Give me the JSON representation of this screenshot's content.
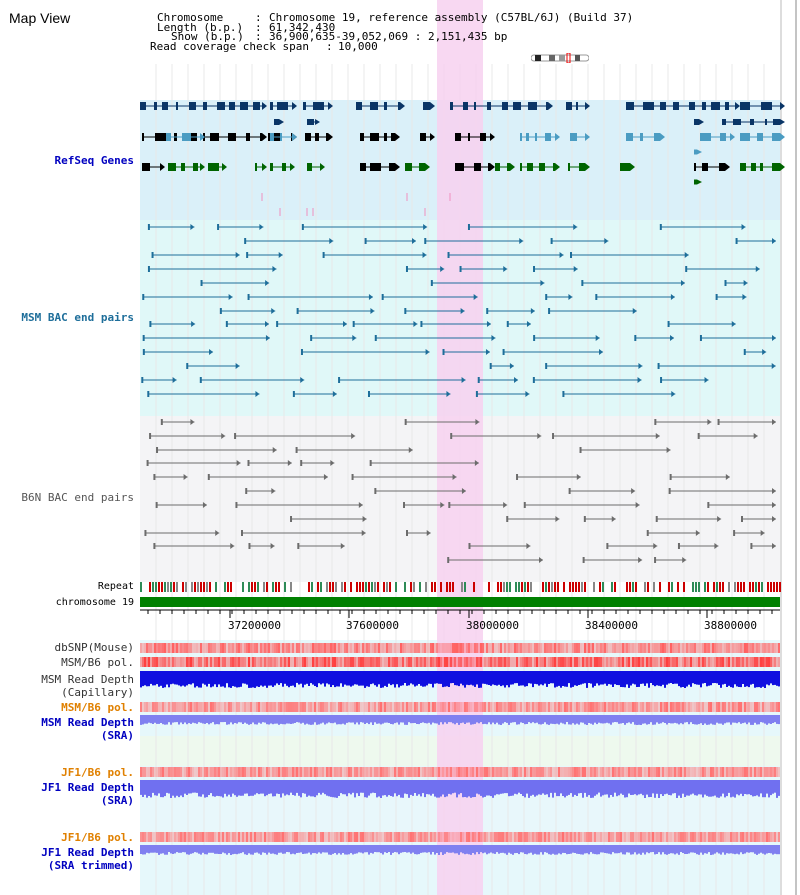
{
  "title": "Map View",
  "info": {
    "chromosome_label": "Chromosome",
    "chromosome_value": "Chromosome 19, reference assembly (C57BL/6J) (Build 37)",
    "length_label": "Length (b.p.)",
    "length_value": "61,342,430",
    "show_label": "Show (b.p.)",
    "show_value": "36,900,635-39,052,069 : 2,151,435 bp",
    "coverage_label": "Read coverage check span",
    "coverage_value": "10,000"
  },
  "tracks": {
    "refseq": "RefSeq Genes",
    "msm_bac": "MSM BAC end pairs",
    "b6n_bac": "B6N BAC end pairs",
    "repeat": "Repeat",
    "chromosome": "chromosome 19",
    "dbsnp": "dbSNP(Mouse)",
    "msm_b6_pol_1": "MSM/B6 pol.",
    "msm_depth_cap_1": "MSM Read Depth",
    "msm_depth_cap_2": "(Capillary)",
    "msm_b6_pol_2": "MSM/B6 pol.",
    "msm_depth_sra_1": "MSM Read Depth",
    "msm_depth_sra_2": "(SRA)",
    "jf1_b6_pol_1": "JF1/B6 pol.",
    "jf1_depth_sra_1": "JF1 Read Depth",
    "jf1_depth_sra_2": "(SRA)",
    "jf1_b6_pol_2": "JF1/B6 pol.",
    "jf1_depth_trim_1": "JF1 Read Depth",
    "jf1_depth_trim_2": "(SRA trimmed)"
  },
  "axis": {
    "ticks": [
      "37200000",
      "37600000",
      "38000000",
      "38400000",
      "38800000"
    ]
  },
  "colors": {
    "refseq_bg": "#daf0f9",
    "msm_bg": "#e0f8f8",
    "b6n_bg": "#f4f4f6",
    "highlight": "#f7d1f0",
    "gene_dark": "#0a3566",
    "gene_mid": "#4b9cc2",
    "gene_green": "#006400",
    "msm_line": "#1e6e9a",
    "b6n_line": "#6c6c6c",
    "chrom_green": "#008000",
    "snp_red": "#ff3c3c",
    "depth_blue": "#1010e0",
    "sra_blue": "#8080f0",
    "orange_label": "#e08000",
    "blue_label": "#0000c0"
  }
}
